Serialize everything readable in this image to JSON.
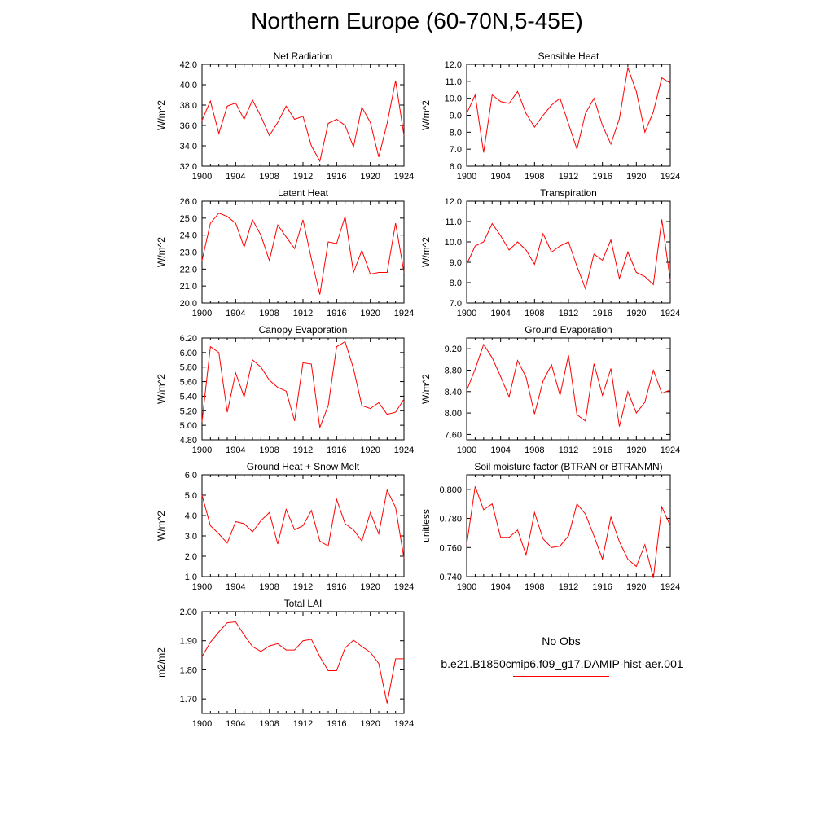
{
  "title": "Northern Europe (60-70N,5-45E)",
  "legend": {
    "obs_label": "No Obs",
    "model_label": "b.e21.B1850cmip6.f09_g17.DAMIP-hist-aer.001",
    "obs_color": "#3333aa",
    "model_color": "#ff0000"
  },
  "chart_data": [
    {
      "type": "line",
      "title": "Net Radiation",
      "ylabel": "W/m^2",
      "xlim": [
        1900,
        1924
      ],
      "ylim": [
        32.0,
        42.0
      ],
      "xticks": [
        1900,
        1904,
        1908,
        1912,
        1916,
        1920,
        1924
      ],
      "yticks": [
        "32.0",
        "34.0",
        "36.0",
        "38.0",
        "40.0",
        "42.0"
      ],
      "x": [
        1900,
        1901,
        1902,
        1903,
        1904,
        1905,
        1906,
        1907,
        1908,
        1909,
        1910,
        1911,
        1912,
        1913,
        1914,
        1915,
        1916,
        1917,
        1918,
        1919,
        1920,
        1921,
        1922,
        1923,
        1924
      ],
      "series": [
        {
          "values": [
            36.5,
            38.4,
            35.2,
            37.9,
            38.2,
            36.6,
            38.5,
            36.9,
            35.0,
            36.3,
            37.9,
            36.6,
            36.9,
            34.0,
            32.5,
            36.2,
            36.6,
            36.0,
            33.9,
            37.8,
            36.3,
            32.9,
            36.2,
            40.4,
            35.0
          ]
        }
      ]
    },
    {
      "type": "line",
      "title": "Sensible Heat",
      "ylabel": "W/m^2",
      "xlim": [
        1900,
        1924
      ],
      "ylim": [
        6.0,
        12.0
      ],
      "xticks": [
        1900,
        1904,
        1908,
        1912,
        1916,
        1920,
        1924
      ],
      "yticks": [
        "6.0",
        "7.0",
        "8.0",
        "9.0",
        "10.0",
        "11.0",
        "12.0"
      ],
      "x": [
        1900,
        1901,
        1902,
        1903,
        1904,
        1905,
        1906,
        1907,
        1908,
        1909,
        1910,
        1911,
        1912,
        1913,
        1914,
        1915,
        1916,
        1917,
        1918,
        1919,
        1920,
        1921,
        1922,
        1923,
        1924
      ],
      "series": [
        {
          "values": [
            9.1,
            10.2,
            6.8,
            10.2,
            9.8,
            9.7,
            10.4,
            9.1,
            8.3,
            9.0,
            9.6,
            10.0,
            8.5,
            7.0,
            9.1,
            10.0,
            8.4,
            7.3,
            8.8,
            11.8,
            10.4,
            8.0,
            9.2,
            11.2,
            10.9
          ]
        }
      ]
    },
    {
      "type": "line",
      "title": "Latent Heat",
      "ylabel": "W/m^2",
      "xlim": [
        1900,
        1924
      ],
      "ylim": [
        20.0,
        26.0
      ],
      "xticks": [
        1900,
        1904,
        1908,
        1912,
        1916,
        1920,
        1924
      ],
      "yticks": [
        "20.0",
        "21.0",
        "22.0",
        "23.0",
        "24.0",
        "25.0",
        "26.0"
      ],
      "x": [
        1900,
        1901,
        1902,
        1903,
        1904,
        1905,
        1906,
        1907,
        1908,
        1909,
        1910,
        1911,
        1912,
        1913,
        1914,
        1915,
        1916,
        1917,
        1918,
        1919,
        1920,
        1921,
        1922,
        1923,
        1924
      ],
      "series": [
        {
          "values": [
            22.5,
            24.7,
            25.3,
            25.1,
            24.7,
            23.3,
            24.9,
            24.0,
            22.5,
            24.6,
            23.9,
            23.2,
            24.9,
            22.6,
            20.5,
            23.6,
            23.5,
            25.1,
            21.8,
            23.1,
            21.7,
            21.8,
            21.8,
            24.7,
            21.8
          ]
        }
      ]
    },
    {
      "type": "line",
      "title": "Transpiration",
      "ylabel": "W/m^2",
      "xlim": [
        1900,
        1924
      ],
      "ylim": [
        7.0,
        12.0
      ],
      "xticks": [
        1900,
        1904,
        1908,
        1912,
        1916,
        1920,
        1924
      ],
      "yticks": [
        "7.0",
        "8.0",
        "9.0",
        "10.0",
        "11.0",
        "12.0"
      ],
      "x": [
        1900,
        1901,
        1902,
        1903,
        1904,
        1905,
        1906,
        1907,
        1908,
        1909,
        1910,
        1911,
        1912,
        1913,
        1914,
        1915,
        1916,
        1917,
        1918,
        1919,
        1920,
        1921,
        1922,
        1923,
        1924
      ],
      "series": [
        {
          "values": [
            8.9,
            9.8,
            10.0,
            10.9,
            10.3,
            9.6,
            10.0,
            9.6,
            8.9,
            10.4,
            9.5,
            9.8,
            10.0,
            8.8,
            7.7,
            9.4,
            9.1,
            10.1,
            8.2,
            9.5,
            8.5,
            8.3,
            7.9,
            11.1,
            8.1
          ]
        }
      ]
    },
    {
      "type": "line",
      "title": "Canopy Evaporation",
      "ylabel": "W/m^2",
      "xlim": [
        1900,
        1924
      ],
      "ylim": [
        4.8,
        6.2
      ],
      "xticks": [
        1900,
        1904,
        1908,
        1912,
        1916,
        1920,
        1924
      ],
      "yticks": [
        "4.80",
        "5.00",
        "5.20",
        "5.40",
        "5.60",
        "5.80",
        "6.00",
        "6.20"
      ],
      "x": [
        1900,
        1901,
        1902,
        1903,
        1904,
        1905,
        1906,
        1907,
        1908,
        1909,
        1910,
        1911,
        1912,
        1913,
        1914,
        1915,
        1916,
        1917,
        1918,
        1919,
        1920,
        1921,
        1922,
        1923,
        1924
      ],
      "series": [
        {
          "values": [
            5.05,
            6.08,
            6.0,
            5.18,
            5.72,
            5.39,
            5.9,
            5.8,
            5.62,
            5.52,
            5.47,
            5.06,
            5.86,
            5.84,
            4.97,
            5.27,
            6.08,
            6.15,
            5.78,
            5.27,
            5.23,
            5.31,
            5.15,
            5.18,
            5.36
          ]
        }
      ]
    },
    {
      "type": "line",
      "title": "Ground Evaporation",
      "ylabel": "W/m^2",
      "xlim": [
        1900,
        1924
      ],
      "ylim": [
        7.5,
        9.4
      ],
      "xticks": [
        1900,
        1904,
        1908,
        1912,
        1916,
        1920,
        1924
      ],
      "yticks": [
        "7.60",
        "8.00",
        "8.40",
        "8.80",
        "9.20"
      ],
      "ytick_values": [
        7.6,
        8.0,
        8.4,
        8.8,
        9.2
      ],
      "x": [
        1900,
        1901,
        1902,
        1903,
        1904,
        1905,
        1906,
        1907,
        1908,
        1909,
        1910,
        1911,
        1912,
        1913,
        1914,
        1915,
        1916,
        1917,
        1918,
        1919,
        1920,
        1921,
        1922,
        1923,
        1924
      ],
      "series": [
        {
          "values": [
            8.42,
            8.82,
            9.28,
            9.03,
            8.68,
            8.3,
            8.98,
            8.67,
            7.98,
            8.6,
            8.9,
            8.33,
            9.08,
            7.97,
            7.85,
            8.92,
            8.33,
            8.83,
            7.75,
            8.4,
            8.0,
            8.2,
            8.8,
            8.37,
            8.43
          ]
        }
      ]
    },
    {
      "type": "line",
      "title": "Ground Heat + Snow Melt",
      "ylabel": "W/m^2",
      "xlim": [
        1900,
        1924
      ],
      "ylim": [
        1.0,
        6.0
      ],
      "xticks": [
        1900,
        1904,
        1908,
        1912,
        1916,
        1920,
        1924
      ],
      "yticks": [
        "1.0",
        "2.0",
        "3.0",
        "4.0",
        "5.0",
        "6.0"
      ],
      "x": [
        1900,
        1901,
        1902,
        1903,
        1904,
        1905,
        1906,
        1907,
        1908,
        1909,
        1910,
        1911,
        1912,
        1913,
        1914,
        1915,
        1916,
        1917,
        1918,
        1919,
        1920,
        1921,
        1922,
        1923,
        1924
      ],
      "series": [
        {
          "values": [
            5.0,
            3.5,
            3.1,
            2.65,
            3.7,
            3.6,
            3.2,
            3.75,
            4.15,
            2.6,
            4.3,
            3.3,
            3.5,
            4.25,
            2.75,
            2.5,
            4.8,
            3.6,
            3.3,
            2.75,
            4.15,
            3.1,
            5.25,
            4.4,
            1.9
          ]
        }
      ]
    },
    {
      "type": "line",
      "title": "Soil moisture factor (BTRAN or BTRANMN)",
      "ylabel": "unitless",
      "xlim": [
        1900,
        1924
      ],
      "ylim": [
        0.74,
        0.81
      ],
      "xticks": [
        1900,
        1904,
        1908,
        1912,
        1916,
        1920,
        1924
      ],
      "yticks": [
        "0.740",
        "0.760",
        "0.780",
        "0.800"
      ],
      "ytick_values": [
        0.74,
        0.76,
        0.78,
        0.8
      ],
      "x": [
        1900,
        1901,
        1902,
        1903,
        1904,
        1905,
        1906,
        1907,
        1908,
        1909,
        1910,
        1911,
        1912,
        1913,
        1914,
        1915,
        1916,
        1917,
        1918,
        1919,
        1920,
        1921,
        1922,
        1923,
        1924
      ],
      "series": [
        {
          "values": [
            0.762,
            0.802,
            0.786,
            0.79,
            0.767,
            0.767,
            0.772,
            0.755,
            0.784,
            0.766,
            0.76,
            0.761,
            0.768,
            0.79,
            0.783,
            0.768,
            0.752,
            0.781,
            0.764,
            0.752,
            0.747,
            0.762,
            0.739,
            0.788,
            0.775
          ]
        }
      ]
    },
    {
      "type": "line",
      "title": "Total LAI",
      "ylabel": "m2/m2",
      "xlim": [
        1900,
        1924
      ],
      "ylim": [
        1.65,
        2.0
      ],
      "xticks": [
        1900,
        1904,
        1908,
        1912,
        1916,
        1920,
        1924
      ],
      "yticks": [
        "1.70",
        "1.80",
        "1.90",
        "2.00"
      ],
      "ytick_values": [
        1.7,
        1.8,
        1.9,
        2.0
      ],
      "x": [
        1900,
        1901,
        1902,
        1903,
        1904,
        1905,
        1906,
        1907,
        1908,
        1909,
        1910,
        1911,
        1912,
        1913,
        1914,
        1915,
        1916,
        1917,
        1918,
        1919,
        1920,
        1921,
        1922,
        1923,
        1924
      ],
      "series": [
        {
          "values": [
            1.845,
            1.895,
            1.93,
            1.962,
            1.965,
            1.92,
            1.88,
            1.863,
            1.882,
            1.89,
            1.868,
            1.868,
            1.9,
            1.905,
            1.845,
            1.797,
            1.797,
            1.875,
            1.902,
            1.88,
            1.86,
            1.822,
            1.685,
            1.838,
            1.838
          ]
        }
      ]
    }
  ]
}
